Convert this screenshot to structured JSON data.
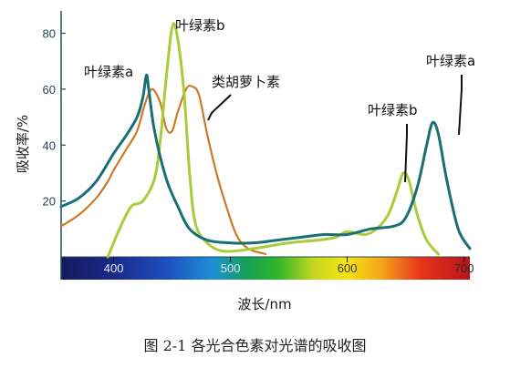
{
  "caption": "图 2-1  各光合色素对光谱的吸收图",
  "chart_data": {
    "type": "line",
    "xlabel": "波长/nm",
    "ylabel": "吸收率/%",
    "xlim": [
      355,
      705
    ],
    "ylim": [
      0,
      88
    ],
    "x_ticks": [
      400,
      500,
      600,
      700
    ],
    "y_ticks": [
      20,
      40,
      60,
      80
    ],
    "grid": false,
    "axis_color": "#1f4e5a",
    "spectrum_bar": true,
    "series": [
      {
        "name": "叶绿素a",
        "color": "#1a6e75",
        "points": [
          [
            355,
            18
          ],
          [
            370,
            21
          ],
          [
            385,
            27
          ],
          [
            400,
            37
          ],
          [
            410,
            43
          ],
          [
            420,
            50
          ],
          [
            425,
            57
          ],
          [
            428,
            65
          ],
          [
            430,
            60
          ],
          [
            435,
            45
          ],
          [
            445,
            28
          ],
          [
            455,
            18
          ],
          [
            465,
            10
          ],
          [
            480,
            6
          ],
          [
            500,
            5
          ],
          [
            520,
            5
          ],
          [
            540,
            6
          ],
          [
            560,
            7
          ],
          [
            580,
            8
          ],
          [
            600,
            8
          ],
          [
            620,
            10
          ],
          [
            640,
            11
          ],
          [
            650,
            14
          ],
          [
            660,
            25
          ],
          [
            668,
            40
          ],
          [
            673,
            48
          ],
          [
            678,
            44
          ],
          [
            685,
            28
          ],
          [
            695,
            10
          ],
          [
            705,
            3
          ]
        ]
      },
      {
        "name": "叶绿素b",
        "color": "#a8cc3a",
        "points": [
          [
            395,
            0
          ],
          [
            405,
            10
          ],
          [
            415,
            18
          ],
          [
            425,
            20
          ],
          [
            435,
            28
          ],
          [
            440,
            42
          ],
          [
            445,
            64
          ],
          [
            450,
            82
          ],
          [
            454,
            80
          ],
          [
            460,
            60
          ],
          [
            465,
            30
          ],
          [
            470,
            12
          ],
          [
            480,
            5
          ],
          [
            495,
            2
          ],
          [
            520,
            3
          ],
          [
            550,
            5
          ],
          [
            575,
            6
          ],
          [
            590,
            7
          ],
          [
            600,
            9
          ],
          [
            615,
            8
          ],
          [
            625,
            10
          ],
          [
            635,
            15
          ],
          [
            643,
            24
          ],
          [
            648,
            30
          ],
          [
            653,
            27
          ],
          [
            660,
            15
          ],
          [
            668,
            6
          ],
          [
            678,
            1
          ]
        ]
      },
      {
        "name": "类胡萝卜素",
        "color": "#cc7a28",
        "points": [
          [
            355,
            11
          ],
          [
            370,
            15
          ],
          [
            385,
            21
          ],
          [
            395,
            27
          ],
          [
            400,
            31
          ],
          [
            410,
            38
          ],
          [
            420,
            45
          ],
          [
            427,
            55
          ],
          [
            433,
            60
          ],
          [
            440,
            55
          ],
          [
            445,
            46
          ],
          [
            450,
            45
          ],
          [
            455,
            52
          ],
          [
            462,
            60
          ],
          [
            467,
            61
          ],
          [
            473,
            58
          ],
          [
            480,
            44
          ],
          [
            488,
            30
          ],
          [
            495,
            20
          ],
          [
            505,
            8
          ],
          [
            515,
            3
          ],
          [
            530,
            1
          ]
        ]
      }
    ],
    "annotations": [
      {
        "text": "叶绿素a",
        "series": "叶绿素a"
      },
      {
        "text": "叶绿素b",
        "series": "叶绿素b"
      },
      {
        "text": "类胡萝卜素",
        "series": "类胡萝卜素"
      },
      {
        "text": "叶绿素b",
        "series": "叶绿素b"
      },
      {
        "text": "叶绿素a",
        "series": "叶绿素a"
      }
    ]
  }
}
